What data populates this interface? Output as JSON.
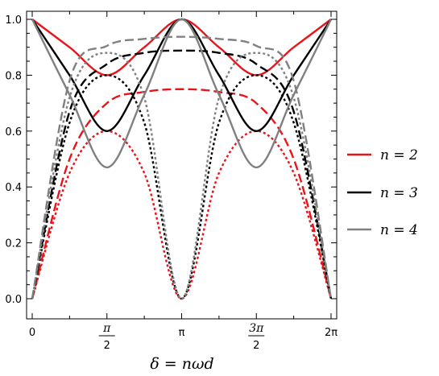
{
  "chart_data": {
    "type": "line",
    "xlabel": "δ = nωd",
    "ylabel": "",
    "xlim": [
      0,
      6.283185
    ],
    "ylim": [
      0,
      1
    ],
    "x_ticks": [
      {
        "value": 0,
        "label": "0"
      },
      {
        "value": 1.570796,
        "label": "π/2"
      },
      {
        "value": 3.141593,
        "label": "π"
      },
      {
        "value": 4.712389,
        "label": "3π/2"
      },
      {
        "value": 6.283185,
        "label": "2π"
      }
    ],
    "y_ticks": [
      {
        "value": 0.0,
        "label": "0.0"
      },
      {
        "value": 0.2,
        "label": "0.2"
      },
      {
        "value": 0.4,
        "label": "0.4"
      },
      {
        "value": 0.6,
        "label": "0.6"
      },
      {
        "value": 0.8,
        "label": "0.8"
      },
      {
        "value": 1.0,
        "label": "1.0"
      }
    ],
    "legend": {
      "placement": "right",
      "entries": [
        {
          "label": "n = 2",
          "color": "#e8141a"
        },
        {
          "label": "n = 3",
          "color": "#000000"
        },
        {
          "label": "n = 4",
          "color": "#808080"
        }
      ]
    },
    "series": [
      {
        "n": 2,
        "style": "solid",
        "color": "#e8141a",
        "points": [
          [
            0,
            1.0
          ],
          [
            0.785,
            0.9
          ],
          [
            1.571,
            0.8
          ],
          [
            2.356,
            0.9
          ],
          [
            3.142,
            1.0
          ],
          [
            3.927,
            0.9
          ],
          [
            4.712,
            0.8
          ],
          [
            5.498,
            0.9
          ],
          [
            6.283,
            1.0
          ]
        ]
      },
      {
        "n": 2,
        "style": "long-dash",
        "color": "#e8141a",
        "points": [
          [
            0,
            0.0
          ],
          [
            0.785,
            0.5
          ],
          [
            1.571,
            0.7
          ],
          [
            2.356,
            0.74
          ],
          [
            3.142,
            0.75
          ],
          [
            3.927,
            0.74
          ],
          [
            4.712,
            0.7
          ],
          [
            5.498,
            0.5
          ],
          [
            6.283,
            0.0
          ]
        ]
      },
      {
        "n": 2,
        "style": "dotted",
        "color": "#e8141a",
        "points": [
          [
            0,
            0.0
          ],
          [
            0.785,
            0.45
          ],
          [
            1.571,
            0.6
          ],
          [
            2.356,
            0.45
          ],
          [
            3.142,
            0.0
          ],
          [
            3.927,
            0.45
          ],
          [
            4.712,
            0.6
          ],
          [
            5.498,
            0.45
          ],
          [
            6.283,
            0.0
          ]
        ]
      },
      {
        "n": 3,
        "style": "solid",
        "color": "#000000",
        "points": [
          [
            0,
            1.0
          ],
          [
            0.785,
            0.8
          ],
          [
            1.571,
            0.6
          ],
          [
            2.356,
            0.8
          ],
          [
            3.142,
            1.0
          ],
          [
            3.927,
            0.8
          ],
          [
            4.712,
            0.6
          ],
          [
            5.498,
            0.8
          ],
          [
            6.283,
            1.0
          ]
        ]
      },
      {
        "n": 3,
        "style": "long-dash",
        "color": "#000000",
        "points": [
          [
            0,
            0.0
          ],
          [
            0.785,
            0.67
          ],
          [
            1.571,
            0.84
          ],
          [
            2.356,
            0.88
          ],
          [
            3.142,
            0.888
          ],
          [
            3.927,
            0.88
          ],
          [
            4.712,
            0.84
          ],
          [
            5.498,
            0.67
          ],
          [
            6.283,
            0.0
          ]
        ]
      },
      {
        "n": 3,
        "style": "dotted",
        "color": "#000000",
        "points": [
          [
            0,
            0.0
          ],
          [
            0.785,
            0.63
          ],
          [
            1.571,
            0.8
          ],
          [
            2.356,
            0.63
          ],
          [
            3.142,
            0.0
          ],
          [
            3.927,
            0.63
          ],
          [
            4.712,
            0.8
          ],
          [
            5.498,
            0.63
          ],
          [
            6.283,
            0.0
          ]
        ]
      },
      {
        "n": 4,
        "style": "solid",
        "color": "#808080",
        "points": [
          [
            0,
            1.0
          ],
          [
            0.785,
            0.73
          ],
          [
            1.571,
            0.47
          ],
          [
            2.356,
            0.73
          ],
          [
            3.142,
            1.0
          ],
          [
            3.927,
            0.73
          ],
          [
            4.712,
            0.47
          ],
          [
            5.498,
            0.73
          ],
          [
            6.283,
            1.0
          ]
        ]
      },
      {
        "n": 4,
        "style": "long-dash",
        "color": "#808080",
        "points": [
          [
            0,
            0.0
          ],
          [
            0.785,
            0.78
          ],
          [
            1.571,
            0.905
          ],
          [
            2.356,
            0.93
          ],
          [
            3.142,
            0.9375
          ],
          [
            3.927,
            0.93
          ],
          [
            4.712,
            0.905
          ],
          [
            5.498,
            0.78
          ],
          [
            6.283,
            0.0
          ]
        ]
      },
      {
        "n": 4,
        "style": "dotted",
        "color": "#808080",
        "points": [
          [
            0,
            0.0
          ],
          [
            0.785,
            0.72
          ],
          [
            1.571,
            0.88
          ],
          [
            2.356,
            0.72
          ],
          [
            3.142,
            0.0
          ],
          [
            3.927,
            0.72
          ],
          [
            4.712,
            0.88
          ],
          [
            5.498,
            0.72
          ],
          [
            6.283,
            0.0
          ]
        ]
      }
    ]
  }
}
